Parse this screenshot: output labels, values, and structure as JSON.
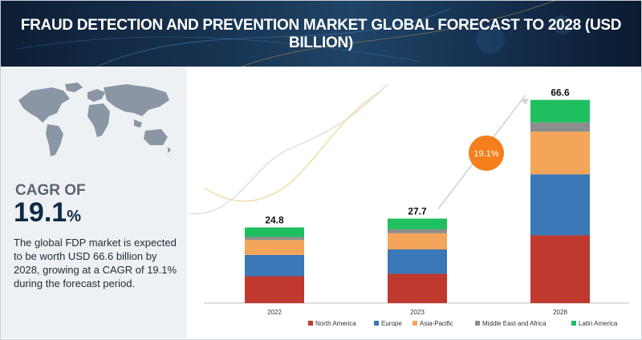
{
  "header": {
    "title": "FRAUD DETECTION AND PREVENTION MARKET GLOBAL FORECAST TO 2028 (USD BILLION)"
  },
  "sidebar": {
    "cagr_label": "CAGR OF",
    "cagr_number": "19.1",
    "cagr_unit": "%",
    "description": "The global FDP market is expected to be worth USD 66.6 billion by 2028, growing at a CAGR of 19.1% during the forecast period."
  },
  "colors": {
    "banner": "#183452",
    "panel": "#eef1f4",
    "North America": "#c0392f",
    "Europe": "#3b78b8",
    "Asia-Pacific": "#f4a55a",
    "Middle East and Africa": "#8d8d8d",
    "Latin America": "#1fbf5f",
    "cagr_bubble": "#f47f1c"
  },
  "chart_data": {
    "type": "bar",
    "stacked": true,
    "categories": [
      "2022",
      "2023",
      "2028"
    ],
    "totals": [
      24.8,
      27.7,
      66.6
    ],
    "series": [
      {
        "name": "North America",
        "values": [
          8.8,
          9.6,
          22.2
        ]
      },
      {
        "name": "Europe",
        "values": [
          7.0,
          8.0,
          20.0
        ]
      },
      {
        "name": "Asia-Pacific",
        "values": [
          4.9,
          5.3,
          14.0
        ]
      },
      {
        "name": "Middle East and Africa",
        "values": [
          1.0,
          1.3,
          3.0
        ]
      },
      {
        "name": "Latin America",
        "values": [
          3.1,
          3.5,
          7.4
        ]
      }
    ],
    "cagr_annotation": "19.1%",
    "legend_position": "bottom",
    "grid": false,
    "ylim": [
      0,
      72
    ]
  }
}
